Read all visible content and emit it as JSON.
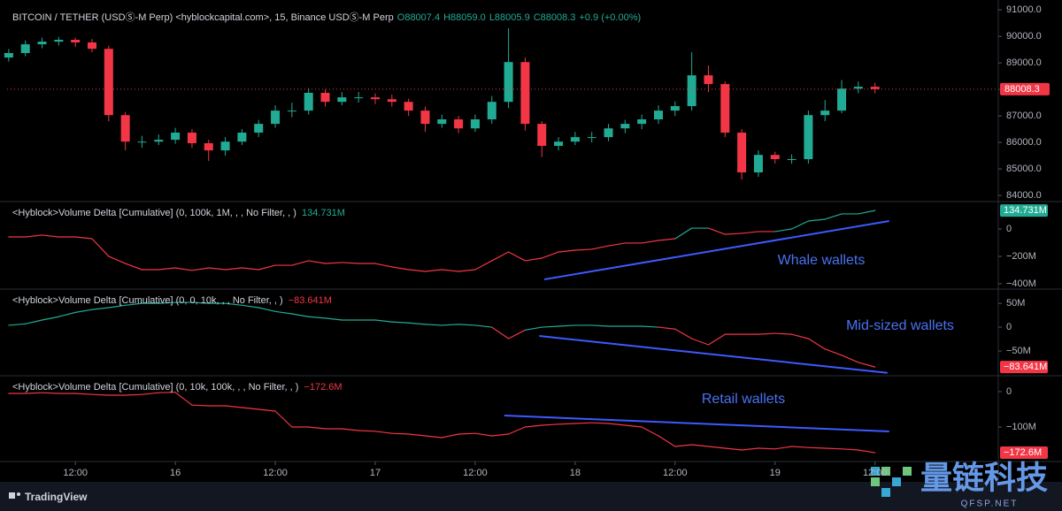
{
  "chart_data": [
    {
      "type": "candlestick",
      "title": "BITCOIN / TETHER (USDⓈ-M Perp) <hyblockcapital.com>, 15, Binance USDⓈ-M Perp",
      "header_values": [
        {
          "value": 88007.4,
          "label": "O88007.4"
        },
        {
          "value": 88059.0,
          "label": "H88059.0"
        },
        {
          "value": 88005.9,
          "label": "L88005.9"
        },
        {
          "value": 88008.3,
          "label": "C88008.3"
        }
      ],
      "change_label": "+0.9 (+0.00%)",
      "up_color": "#22ab94",
      "down_color": "#f23645",
      "x": [
        4,
        6,
        8,
        10,
        12,
        14,
        16,
        18,
        20,
        22,
        24,
        26,
        28,
        30,
        32,
        34,
        36,
        38,
        40,
        42,
        44,
        46,
        48,
        50,
        52,
        54,
        56,
        58,
        60,
        62,
        64,
        66,
        68,
        70,
        72,
        74,
        76,
        78,
        80,
        82,
        84,
        86,
        88,
        90,
        92,
        94,
        96,
        98,
        100,
        102,
        104,
        106,
        108
      ],
      "open": [
        89200,
        89370,
        89700,
        89800,
        89870,
        89770,
        89530,
        87030,
        86030,
        86030,
        86100,
        86370,
        85970,
        85700,
        86030,
        86370,
        86700,
        87200,
        87200,
        87870,
        87530,
        87700,
        87700,
        87630,
        87530,
        87200,
        86700,
        86870,
        86530,
        86870,
        87530,
        89030,
        86700,
        85870,
        86030,
        86200,
        86200,
        86530,
        86700,
        86870,
        87200,
        87370,
        88530,
        88200,
        86370,
        84870,
        85530,
        85370,
        85370,
        87030,
        87200,
        88030,
        88100
      ],
      "high": [
        89520,
        89850,
        89950,
        89980,
        89950,
        89900,
        89650,
        87150,
        86250,
        86300,
        86550,
        86500,
        86100,
        86200,
        86500,
        86850,
        87400,
        87500,
        88050,
        88000,
        87900,
        87900,
        87850,
        87800,
        87650,
        87350,
        87050,
        87000,
        87050,
        87750,
        90300,
        89200,
        86800,
        86200,
        86400,
        86400,
        86700,
        86850,
        87050,
        87400,
        87550,
        89400,
        88900,
        88300,
        86500,
        85700,
        85650,
        85550,
        87200,
        87600,
        88350,
        88300,
        88250
      ],
      "low": [
        89050,
        89250,
        89550,
        89650,
        89600,
        89400,
        86800,
        85700,
        85800,
        85900,
        85950,
        85800,
        85300,
        85500,
        85900,
        86200,
        86550,
        86950,
        87050,
        87350,
        87400,
        87500,
        87450,
        87350,
        87000,
        86400,
        86550,
        86350,
        86400,
        86700,
        87300,
        86450,
        85450,
        85700,
        85900,
        86000,
        86050,
        86350,
        86500,
        86700,
        87000,
        87200,
        87900,
        86200,
        84600,
        84700,
        85200,
        85200,
        85200,
        86800,
        87100,
        87850,
        87850
      ],
      "close": [
        89370,
        89700,
        89800,
        89870,
        89770,
        89530,
        87030,
        86030,
        86030,
        86100,
        86370,
        85970,
        85700,
        86030,
        86370,
        86700,
        87200,
        87200,
        87870,
        87530,
        87700,
        87700,
        87630,
        87530,
        87200,
        86700,
        86870,
        86530,
        86870,
        87530,
        89030,
        86700,
        85870,
        86030,
        86200,
        86200,
        86530,
        86700,
        86870,
        87200,
        87370,
        88530,
        88200,
        86370,
        84870,
        85530,
        85370,
        85370,
        87030,
        87200,
        88030,
        88100,
        88008.3
      ],
      "xlim": [
        3.8,
        122.8
      ],
      "xticks": [
        {
          "value": 12,
          "label": "12:00"
        },
        {
          "value": 24,
          "label": "16"
        },
        {
          "value": 36,
          "label": "12:00"
        },
        {
          "value": 48,
          "label": "17"
        },
        {
          "value": 60,
          "label": "12:00"
        },
        {
          "value": 72,
          "label": "18"
        },
        {
          "value": 84,
          "label": "12:00"
        },
        {
          "value": 96,
          "label": "19"
        },
        {
          "value": 108,
          "label": "12:00"
        }
      ],
      "ylim": [
        83770,
        91370
      ],
      "yticks": [
        {
          "value": 84000,
          "label": "84000.0"
        },
        {
          "value": 85000,
          "label": "85000.0"
        },
        {
          "value": 86000,
          "label": "86000.0"
        },
        {
          "value": 87000,
          "label": "87000.0"
        },
        {
          "value": 88000,
          "label": "88000.0"
        },
        {
          "value": 89000,
          "label": "89000.0"
        },
        {
          "value": 90000,
          "label": "90000.0"
        },
        {
          "value": 91000,
          "label": "91000.0"
        }
      ]
    },
    {
      "type": "line",
      "title": "<Hyblock>Volume Delta [Cumulative] (0, 100k, 1M, , , No Filter, , )",
      "last_value_label": "134.731M",
      "positive_color": "#22ab94",
      "negative_color": "#f23645",
      "values": [
        -58,
        -58,
        -45,
        -58,
        -58,
        -71,
        -200,
        -252,
        -297,
        -297,
        -284,
        -303,
        -284,
        -297,
        -284,
        -297,
        -265,
        -265,
        -232,
        -252,
        -245,
        -252,
        -252,
        -277,
        -297,
        -310,
        -297,
        -310,
        -297,
        -232,
        -168,
        -232,
        -213,
        -168,
        -155,
        -148,
        -123,
        -103,
        -103,
        -84,
        -71,
        6,
        6,
        -39,
        -32,
        -19,
        -19,
        0,
        58,
        71,
        110,
        110,
        134.731
      ],
      "ylim": [
        -439,
        200
      ],
      "yticks": [
        0,
        {
          "value": -200,
          "label": "−200M"
        },
        {
          "value": -400,
          "label": "−400M"
        }
      ],
      "annotation": "Whale wallets",
      "annotation_color": "#4a72f0",
      "trendline": {
        "x": [
          68.3,
          109.7
        ],
        "y": [
          -368,
          58
        ],
        "color": "#3d5afe"
      }
    },
    {
      "type": "line",
      "title": "<Hyblock>Volume Delta [Cumulative] (0, 0, 10k, , , No Filter, , )",
      "last_value_label": "−83.641M",
      "positive_color": "#22ab94",
      "negative_color": "#f23645",
      "values": [
        4,
        7,
        15,
        22,
        31,
        37,
        41,
        46,
        50,
        50,
        52,
        52,
        50,
        50,
        46,
        41,
        33,
        28,
        22,
        19,
        15,
        15,
        15,
        11,
        9,
        6,
        4,
        6,
        4,
        0,
        -24,
        -6,
        0,
        2,
        4,
        4,
        2,
        2,
        2,
        0,
        -4,
        -24,
        -37,
        -15,
        -15,
        -15,
        -13,
        -15,
        -24,
        -46,
        -59,
        -74,
        -83.641
      ],
      "ylim": [
        -102,
        80
      ],
      "yticks": [
        {
          "value": 50,
          "label": "50M"
        },
        0,
        {
          "value": -50,
          "label": "−50M"
        }
      ],
      "annotation": "Mid-sized wallets",
      "annotation_color": "#4a72f0",
      "trendline": {
        "x": [
          67.7,
          109.5
        ],
        "y": [
          -18.5,
          -96
        ],
        "color": "#3d5afe"
      }
    },
    {
      "type": "line",
      "title": "<Hyblock>Volume Delta [Cumulative] (0, 10k, 100k, , , No Filter, , )",
      "last_value_label": "−172.6M",
      "positive_color": "#22ab94",
      "negative_color": "#f23645",
      "values": [
        -5,
        -5,
        -3,
        -5,
        -5,
        -8,
        -10,
        -10,
        -8,
        -3,
        -2,
        -38,
        -40,
        -40,
        -45,
        -50,
        -55,
        -100,
        -100,
        -105,
        -105,
        -110,
        -112,
        -118,
        -120,
        -125,
        -130,
        -120,
        -118,
        -125,
        -120,
        -100,
        -95,
        -92,
        -90,
        -88,
        -90,
        -95,
        -100,
        -125,
        -155,
        -150,
        -155,
        -160,
        -165,
        -160,
        -162,
        -155,
        -158,
        -160,
        -162,
        -165,
        -172.6
      ],
      "ylim": [
        -197.5,
        45
      ],
      "yticks": [
        0,
        {
          "value": -100,
          "label": "−100M"
        }
      ],
      "annotation": "Retail wallets",
      "annotation_color": "#4a72f0",
      "trendline": {
        "x": [
          63.5,
          109.7
        ],
        "y": [
          -67.5,
          -112.5
        ],
        "color": "#3d5afe"
      }
    }
  ],
  "branding": {
    "platform": "TradingView",
    "watermark": "量链科技",
    "watermark_sub": "QFSP.NET"
  }
}
